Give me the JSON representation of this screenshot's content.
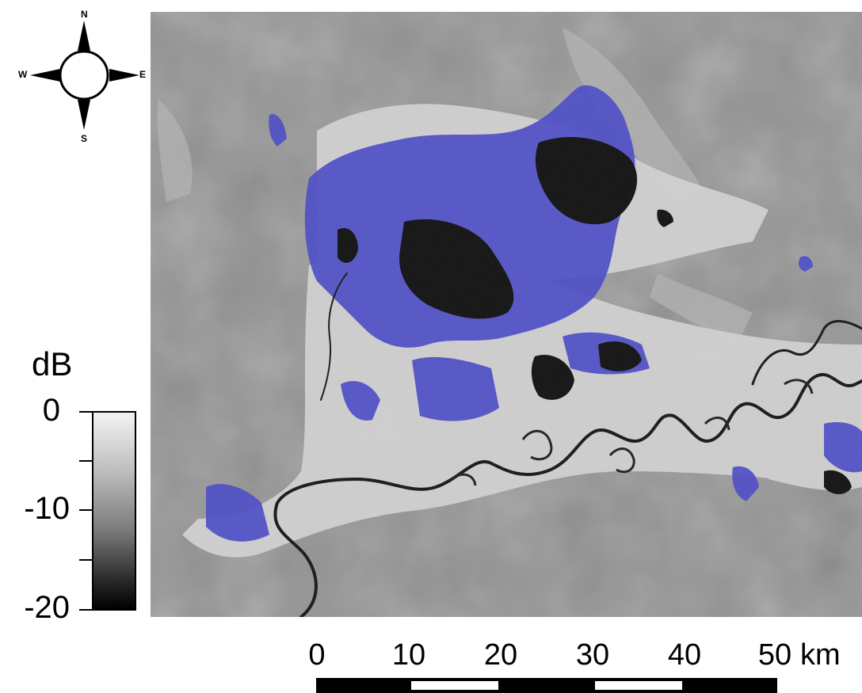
{
  "compass": {
    "north": "N",
    "south": "S",
    "west": "W",
    "east": "E"
  },
  "legend": {
    "title": "dB",
    "labels": [
      "0",
      "-10",
      "-20"
    ],
    "gradient_colors": [
      "#f3f3f3",
      "#bdbdbd",
      "#7a7a7a",
      "#2a2a2a",
      "#000000"
    ]
  },
  "scale_bar": {
    "labels": [
      "0",
      "10",
      "20",
      "30",
      "40",
      "50"
    ],
    "unit": "km"
  },
  "map": {
    "background_color": "#8e8e8e",
    "flood_color": "#4646c8",
    "open_water_color": "#0b0b0b",
    "floodplain_color": "#d2d2d2"
  }
}
